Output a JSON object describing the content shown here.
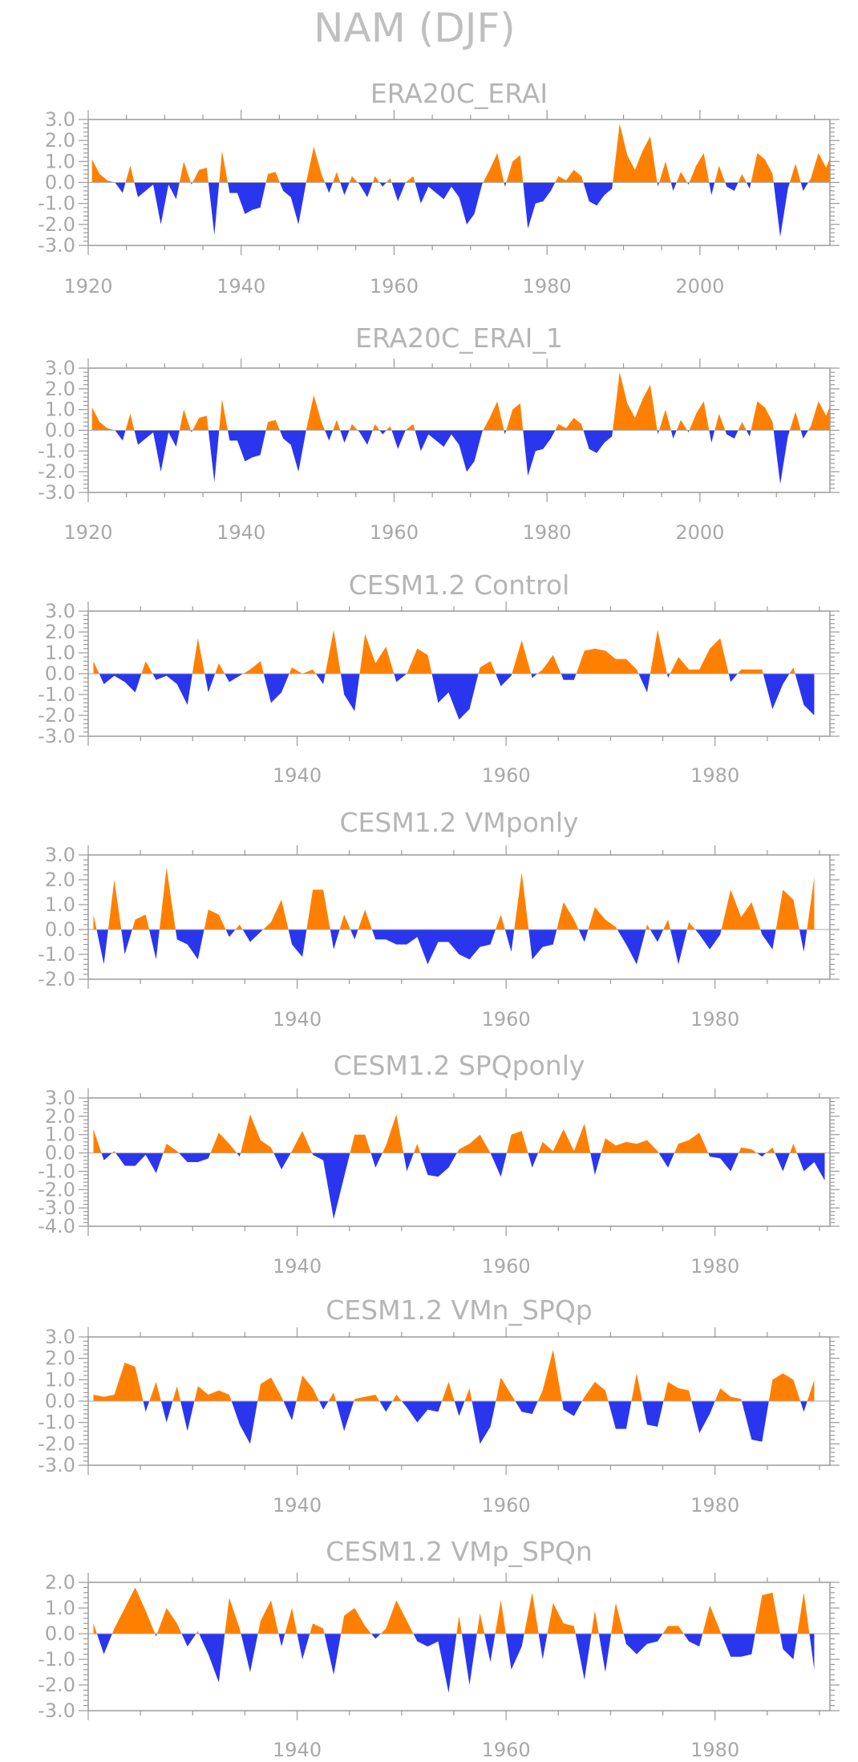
{
  "figure": {
    "title": "NAM (DJF)"
  },
  "colors": {
    "positive": "#ff8000",
    "negative": "#2a36ee",
    "axis": "#9a9a9a",
    "text": "#b0b0b0"
  },
  "chart_data": [
    {
      "type": "area",
      "title": "ERA20C_ERAI",
      "xlim": [
        1920,
        2017
      ],
      "ylim": [
        -3,
        3
      ],
      "yticks": [
        -3,
        -2,
        -1,
        0,
        1,
        2,
        3
      ],
      "ytick_labels": [
        "-3.0",
        "-2.0",
        "-1.0",
        "0.0",
        "1.0",
        "2.0",
        "3.0"
      ],
      "xticks": [
        1920,
        1940,
        1960,
        1980,
        2000
      ],
      "xtick_labels": [
        "1920",
        "1940",
        "1960",
        "1980",
        "2000"
      ],
      "x_start": 1920,
      "values": [
        1.1,
        0.4,
        0.1,
        0.0,
        -0.5,
        0.8,
        -0.7,
        -0.4,
        -0.1,
        -2.0,
        -0.1,
        -0.8,
        1.0,
        -0.1,
        0.6,
        0.7,
        -2.5,
        1.5,
        -0.5,
        -0.5,
        -1.5,
        -1.3,
        -1.2,
        0.4,
        0.5,
        -0.4,
        -0.7,
        -2.0,
        0.0,
        1.7,
        0.4,
        -0.5,
        0.5,
        -0.6,
        0.3,
        -0.1,
        -0.7,
        0.3,
        -0.2,
        0.2,
        -0.9,
        0.0,
        0.3,
        -1.0,
        -0.2,
        -0.5,
        -0.8,
        -0.2,
        -0.7,
        -2.0,
        -1.5,
        -0.1,
        0.6,
        1.4,
        -0.2,
        1.0,
        1.3,
        -2.2,
        -1.0,
        -0.9,
        -0.4,
        0.3,
        0.1,
        0.6,
        0.3,
        -0.9,
        -1.1,
        -0.6,
        -0.3,
        2.8,
        1.3,
        0.6,
        1.5,
        2.2,
        -0.2,
        1.0,
        -0.4,
        0.5,
        -0.1,
        0.8,
        1.4,
        -0.6,
        0.8,
        -0.2,
        -0.4,
        0.4,
        -0.3,
        1.4,
        1.1,
        0.4,
        -2.6,
        -0.3,
        0.9,
        -0.4,
        0.2,
        1.4,
        0.7,
        1.6
      ]
    },
    {
      "type": "area",
      "title": "ERA20C_ERAI_1",
      "xlim": [
        1920,
        2017
      ],
      "ylim": [
        -3,
        3
      ],
      "yticks": [
        -3,
        -2,
        -1,
        0,
        1,
        2,
        3
      ],
      "ytick_labels": [
        "-3.0",
        "-2.0",
        "-1.0",
        "0.0",
        "1.0",
        "2.0",
        "3.0"
      ],
      "xticks": [
        1920,
        1940,
        1960,
        1980,
        2000
      ],
      "xtick_labels": [
        "1920",
        "1940",
        "1960",
        "1980",
        "2000"
      ],
      "x_start": 1920,
      "values": [
        1.1,
        0.4,
        0.1,
        0.0,
        -0.5,
        0.8,
        -0.7,
        -0.4,
        -0.1,
        -2.0,
        -0.1,
        -0.8,
        1.0,
        -0.1,
        0.6,
        0.7,
        -2.5,
        1.5,
        -0.5,
        -0.5,
        -1.5,
        -1.3,
        -1.2,
        0.4,
        0.5,
        -0.4,
        -0.7,
        -2.0,
        0.0,
        1.7,
        0.4,
        -0.5,
        0.5,
        -0.6,
        0.3,
        -0.1,
        -0.7,
        0.3,
        -0.2,
        0.2,
        -0.9,
        0.0,
        0.3,
        -1.0,
        -0.2,
        -0.5,
        -0.8,
        -0.2,
        -0.7,
        -2.0,
        -1.5,
        -0.1,
        0.6,
        1.4,
        -0.2,
        1.0,
        1.3,
        -2.2,
        -1.0,
        -0.9,
        -0.4,
        0.3,
        0.1,
        0.6,
        0.3,
        -0.9,
        -1.1,
        -0.6,
        -0.3,
        2.8,
        1.3,
        0.6,
        1.5,
        2.2,
        -0.2,
        1.0,
        -0.4,
        0.5,
        -0.1,
        0.8,
        1.4,
        -0.6,
        0.8,
        -0.2,
        -0.4,
        0.4,
        -0.3,
        1.4,
        1.1,
        0.4,
        -2.6,
        -0.3,
        0.9,
        -0.4,
        0.2,
        1.4,
        0.7,
        1.6
      ]
    },
    {
      "type": "area",
      "title": "CESM1.2 Control",
      "xlim": [
        1920,
        1991
      ],
      "ylim": [
        -3,
        3
      ],
      "yticks": [
        -3,
        -2,
        -1,
        0,
        1,
        2,
        3
      ],
      "ytick_labels": [
        "-3.0",
        "-2.0",
        "-1.0",
        "0.0",
        "1.0",
        "2.0",
        "3.0"
      ],
      "xticks": [
        1940,
        1960,
        1980
      ],
      "xtick_labels": [
        "1940",
        "1960",
        "1980"
      ],
      "x_start": 1920,
      "values": [
        0.6,
        -0.5,
        -0.1,
        -0.4,
        -0.9,
        0.6,
        -0.3,
        -0.1,
        -0.5,
        -1.5,
        1.7,
        -0.9,
        0.5,
        -0.4,
        -0.1,
        0.2,
        0.6,
        -1.4,
        -0.9,
        0.3,
        0.0,
        0.2,
        -0.5,
        2.1,
        -1.0,
        -1.8,
        1.9,
        0.5,
        1.3,
        -0.4,
        0.0,
        1.2,
        0.9,
        -1.4,
        -0.9,
        -2.2,
        -1.7,
        0.3,
        0.6,
        -0.6,
        -0.1,
        1.6,
        -0.2,
        0.2,
        0.9,
        -0.3,
        -0.3,
        1.1,
        1.2,
        1.1,
        0.7,
        0.7,
        0.2,
        -0.9,
        2.1,
        -0.2,
        0.8,
        0.2,
        0.2,
        1.2,
        1.7,
        -0.4,
        0.2,
        0.2,
        0.2,
        -1.7,
        -0.5,
        0.3,
        -1.5,
        -2.0
      ]
    },
    {
      "type": "area",
      "title": "CESM1.2 VMponly",
      "xlim": [
        1920,
        1991
      ],
      "ylim": [
        -2,
        3
      ],
      "yticks": [
        -2,
        -1,
        0,
        1,
        2,
        3
      ],
      "ytick_labels": [
        "-2.0",
        "-1.0",
        "0.0",
        "1.0",
        "2.0",
        "3.0"
      ],
      "xticks": [
        1940,
        1960,
        1980
      ],
      "xtick_labels": [
        "1940",
        "1960",
        "1980"
      ],
      "x_start": 1920,
      "values": [
        0.6,
        -1.4,
        2.0,
        -1.0,
        0.4,
        0.6,
        -1.2,
        2.5,
        -0.4,
        -0.6,
        -1.2,
        0.8,
        0.6,
        -0.3,
        0.2,
        -0.5,
        -0.1,
        0.3,
        1.2,
        -0.6,
        -1.1,
        1.6,
        1.6,
        -0.8,
        0.6,
        -0.4,
        0.8,
        -0.4,
        -0.4,
        -0.6,
        -0.6,
        -0.3,
        -1.4,
        -0.5,
        -0.5,
        -1.0,
        -1.2,
        -0.7,
        -0.6,
        0.6,
        -0.9,
        2.3,
        -1.2,
        -0.7,
        -0.6,
        1.1,
        0.4,
        -0.5,
        0.9,
        0.4,
        0.1,
        -0.6,
        -1.4,
        0.2,
        -0.5,
        0.4,
        -1.4,
        0.3,
        -0.2,
        -0.8,
        -0.2,
        1.6,
        0.5,
        1.1,
        -0.2,
        -0.8,
        1.6,
        1.2,
        -0.9,
        2.1
      ]
    },
    {
      "type": "area",
      "title": "CESM1.2 SPQponly",
      "xlim": [
        1920,
        1991
      ],
      "ylim": [
        -4,
        3
      ],
      "yticks": [
        -4,
        -3,
        -2,
        -1,
        0,
        1,
        2,
        3
      ],
      "ytick_labels": [
        "-4.0",
        "-3.0",
        "-2.0",
        "-1.0",
        "0.0",
        "1.0",
        "2.0",
        "3.0"
      ],
      "xticks": [
        1940,
        1960,
        1980
      ],
      "xtick_labels": [
        "1940",
        "1960",
        "1980"
      ],
      "x_start": 1920,
      "values": [
        1.3,
        -0.4,
        0.1,
        -0.7,
        -0.7,
        -0.1,
        -1.1,
        0.5,
        0.1,
        -0.5,
        -0.5,
        -0.3,
        1.1,
        0.5,
        -0.2,
        2.1,
        0.7,
        0.3,
        -0.9,
        0.1,
        1.2,
        -0.1,
        -0.4,
        -3.6,
        -1.3,
        1.0,
        1.0,
        -0.8,
        0.4,
        2.1,
        -1.0,
        0.5,
        -1.2,
        -1.3,
        -0.8,
        0.2,
        0.5,
        1.0,
        0.0,
        -1.3,
        1.0,
        1.2,
        -0.8,
        0.6,
        0.1,
        1.3,
        0.1,
        1.6,
        -1.2,
        0.8,
        0.4,
        0.6,
        0.5,
        0.7,
        0.1,
        -0.8,
        0.5,
        0.7,
        1.1,
        -0.2,
        -0.3,
        -1.0,
        0.3,
        0.2,
        -0.2,
        0.3,
        -1.0,
        0.5,
        -1.0,
        -0.5,
        -1.5
      ]
    },
    {
      "type": "area",
      "title": "CESM1.2 VMn_SPQp",
      "xlim": [
        1920,
        1991
      ],
      "ylim": [
        -3,
        3
      ],
      "yticks": [
        -3,
        -2,
        -1,
        0,
        1,
        2,
        3
      ],
      "ytick_labels": [
        "-3.0",
        "-2.0",
        "-1.0",
        "0.0",
        "1.0",
        "2.0",
        "3.0"
      ],
      "xticks": [
        1940,
        1960,
        1980
      ],
      "xtick_labels": [
        "1940",
        "1960",
        "1980"
      ],
      "x_start": 1920,
      "values": [
        0.3,
        0.2,
        0.3,
        1.8,
        1.6,
        -0.5,
        0.9,
        -1.0,
        0.7,
        -1.4,
        0.7,
        0.3,
        0.5,
        0.3,
        -1.1,
        -2.0,
        0.8,
        1.1,
        0.2,
        -0.9,
        1.2,
        0.6,
        -0.4,
        0.4,
        -1.4,
        0.1,
        0.2,
        0.3,
        -0.5,
        0.3,
        -0.3,
        -1.0,
        -0.4,
        -0.5,
        0.9,
        -0.7,
        0.6,
        -2.0,
        -1.2,
        1.1,
        0.3,
        -0.5,
        -0.6,
        0.5,
        2.4,
        -0.4,
        -0.7,
        0.2,
        0.9,
        0.5,
        -1.3,
        -1.3,
        1.3,
        -1.1,
        -1.2,
        0.9,
        0.6,
        0.5,
        -1.5,
        -0.6,
        0.6,
        0.2,
        0.1,
        -1.8,
        -1.9,
        1.0,
        1.3,
        1.0,
        -0.5,
        1.0
      ]
    },
    {
      "type": "area",
      "title": "CESM1.2 VMp_SPQn",
      "xlim": [
        1920,
        1991
      ],
      "ylim": [
        -3,
        2
      ],
      "yticks": [
        -3,
        -2,
        -1,
        0,
        1,
        2
      ],
      "ytick_labels": [
        "-3.0",
        "-2.0",
        "-1.0",
        "0.0",
        "1.0",
        "2.0"
      ],
      "xticks": [
        1940,
        1960,
        1980
      ],
      "xtick_labels": [
        "1940",
        "1960",
        "1980"
      ],
      "x_start": 1920,
      "values": [
        0.4,
        -0.8,
        0.2,
        1.0,
        1.8,
        0.9,
        -0.1,
        1.0,
        0.4,
        -0.5,
        0.1,
        -0.8,
        -1.9,
        1.4,
        0.2,
        -1.5,
        0.5,
        1.3,
        -0.5,
        1.0,
        -1.0,
        0.4,
        0.2,
        -1.6,
        0.7,
        1.0,
        0.3,
        -0.2,
        0.2,
        1.3,
        0.5,
        -0.3,
        -0.5,
        -0.3,
        -2.3,
        0.7,
        -2.0,
        0.8,
        -1.1,
        1.3,
        -1.4,
        -0.5,
        1.6,
        -1.0,
        1.2,
        0.4,
        0.3,
        -1.8,
        0.9,
        -1.5,
        1.2,
        -0.4,
        -0.8,
        -0.4,
        -0.3,
        0.3,
        0.3,
        -0.3,
        -0.5,
        1.1,
        0.1,
        -0.9,
        -0.9,
        -0.8,
        1.5,
        1.6,
        -0.6,
        -1.0,
        1.6,
        -1.4
      ]
    }
  ]
}
